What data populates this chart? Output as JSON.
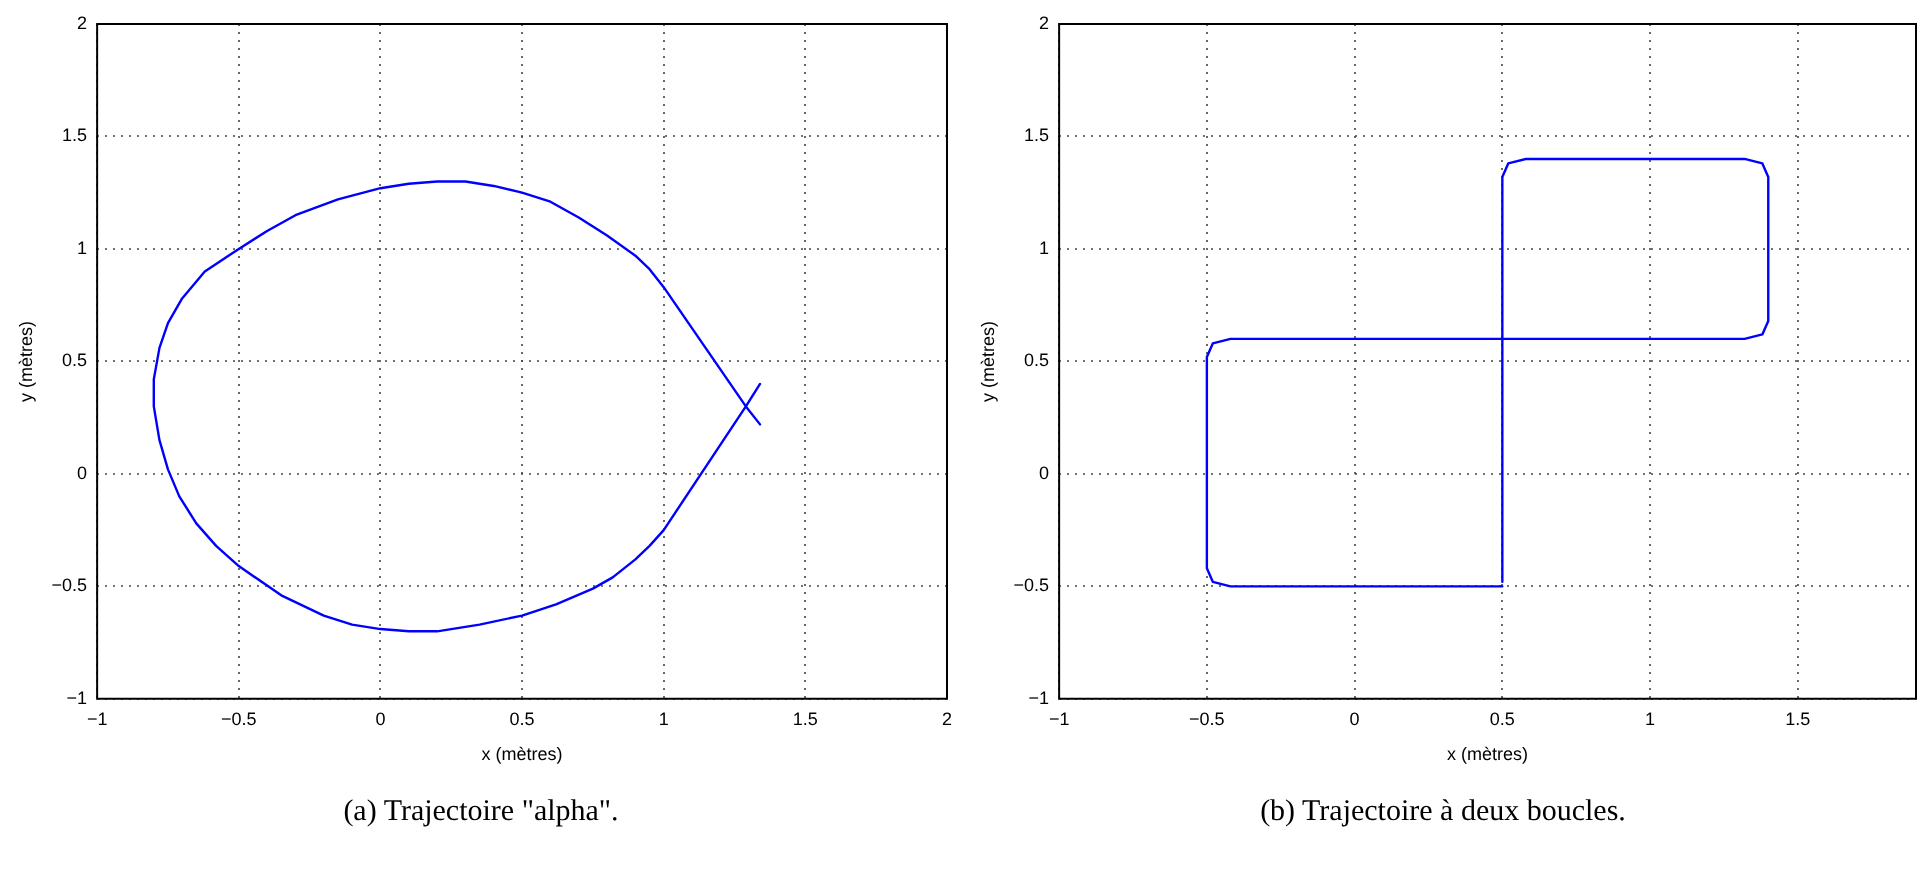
{
  "chart_data": [
    {
      "type": "line",
      "xlabel": "x (mètres)",
      "ylabel": "y (mètres)",
      "annotations": [
        "(a) Trajectoire \"alpha\"."
      ],
      "grid": true,
      "line_style": "solid",
      "marker": "none",
      "xlim": [
        -1,
        2
      ],
      "xticks": [
        -1,
        -0.5,
        0,
        0.5,
        1,
        1.5,
        2
      ],
      "ylim": [
        -1,
        2
      ],
      "yticks": [
        -1,
        -0.5,
        0,
        0.5,
        1,
        1.5,
        2
      ],
      "series": [
        {
          "color": "#0000ff",
          "x": [
            1.34,
            1.29,
            1.0,
            0.95,
            0.9,
            0.82,
            0.75,
            0.62,
            0.5,
            0.35,
            0.2,
            0.1,
            0,
            -0.1,
            -0.2,
            -0.35,
            -0.5,
            -0.58,
            -0.65,
            -0.71,
            -0.75,
            -0.78,
            -0.8,
            -0.8,
            -0.78,
            -0.75,
            -0.7,
            -0.62,
            -0.5,
            -0.4,
            -0.3,
            -0.15,
            0,
            0.1,
            0.2,
            0.3,
            0.4,
            0.5,
            0.6,
            0.7,
            0.8,
            0.9,
            0.95,
            1.0,
            1.29,
            1.34
          ],
          "values": [
            0.4,
            0.3,
            -0.25,
            -0.32,
            -0.38,
            -0.46,
            -0.51,
            -0.58,
            -0.63,
            -0.67,
            -0.7,
            -0.7,
            -0.69,
            -0.67,
            -0.63,
            -0.54,
            -0.41,
            -0.32,
            -0.22,
            -0.1,
            0.02,
            0.15,
            0.3,
            0.42,
            0.56,
            0.67,
            0.78,
            0.9,
            1.0,
            1.08,
            1.15,
            1.22,
            1.27,
            1.29,
            1.3,
            1.3,
            1.28,
            1.25,
            1.21,
            1.14,
            1.06,
            0.97,
            0.91,
            0.83,
            0.3,
            0.22
          ]
        }
      ]
    },
    {
      "type": "line",
      "xlabel": "x (mètres)",
      "ylabel": "y (mètres)",
      "annotations": [
        "(b) Trajectoire à deux boucles."
      ],
      "grid": true,
      "line_style": "solid",
      "marker": "none",
      "xlim": [
        -1,
        1.9
      ],
      "xticks": [
        -1,
        -0.5,
        0,
        0.5,
        1,
        1.5
      ],
      "ylim": [
        -1,
        2
      ],
      "yticks": [
        -1,
        -0.5,
        0,
        0.5,
        1,
        1.5,
        2
      ],
      "series": [
        {
          "color": "#0000ff",
          "x": [
            0.5,
            0,
            -0.42,
            -0.48,
            -0.5,
            -0.5,
            -0.48,
            -0.42,
            0,
            0.5,
            1,
            1.32,
            1.38,
            1.4,
            1.4,
            1.38,
            1.32,
            1,
            0.58,
            0.52,
            0.5,
            0.5
          ],
          "values": [
            -0.5,
            -0.5,
            -0.5,
            -0.48,
            -0.42,
            0.52,
            0.58,
            0.6,
            0.6,
            0.6,
            0.6,
            0.6,
            0.62,
            0.68,
            1.32,
            1.38,
            1.4,
            1.4,
            1.4,
            1.38,
            1.32,
            -0.48
          ]
        }
      ]
    }
  ]
}
